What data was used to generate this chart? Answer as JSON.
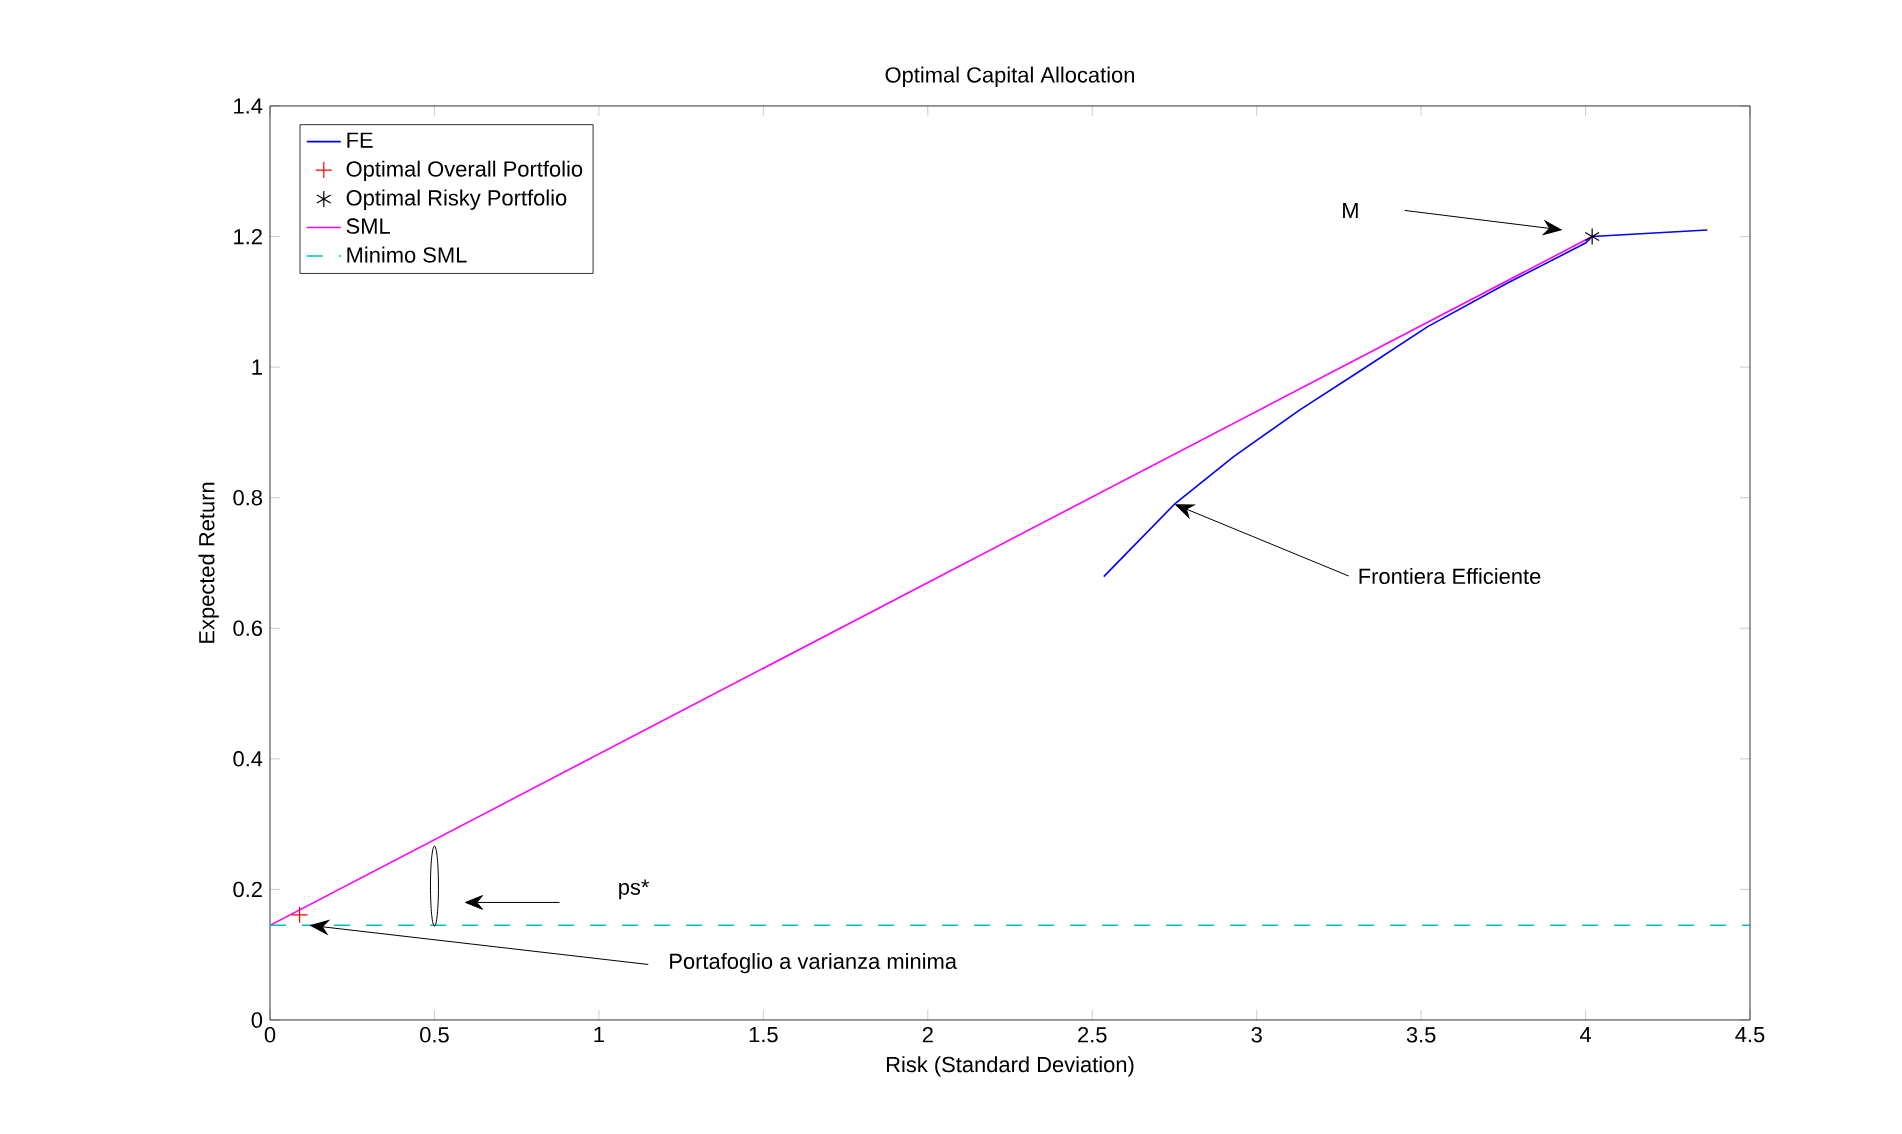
{
  "chart_data": {
    "type": "line",
    "title": "Optimal Capital Allocation",
    "xlabel": "Risk (Standard Deviation)",
    "ylabel": "Expected Return",
    "xlim": [
      0,
      4.5
    ],
    "ylim": [
      0,
      1.4
    ],
    "xticks": [
      0,
      0.5,
      1,
      1.5,
      2,
      2.5,
      3,
      3.5,
      4,
      4.5
    ],
    "yticks": [
      0,
      0.2,
      0.4,
      0.6,
      0.8,
      1,
      1.2,
      1.4
    ],
    "grid": false,
    "legend": "top left",
    "series": [
      {
        "name": "FE",
        "color": "#0000ff",
        "x": [
          2.535,
          2.75,
          2.93,
          3.13,
          3.32,
          3.52,
          3.76,
          4.0,
          4.02,
          4.37
        ],
        "values": [
          0.679,
          0.79,
          0.863,
          0.934,
          0.996,
          1.062,
          1.128,
          1.19,
          1.2,
          1.21
        ]
      },
      {
        "name": "Optimal Overall Portfolio",
        "type": "scatter",
        "marker": "cross",
        "color": "#ff0000",
        "x": [
          0.09
        ],
        "values": [
          0.161
        ]
      },
      {
        "name": "Optimal Risky Portfolio",
        "type": "scatter",
        "color": "#000000",
        "x": [
          4.02
        ],
        "values": [
          1.2
        ]
      },
      {
        "name": "SML",
        "color": "#ff00ff",
        "x": [
          0,
          4.02
        ],
        "values": [
          0.145,
          1.2
        ]
      },
      {
        "name": "Minimo SML",
        "line_style": "dashed",
        "color": "#00bfbf",
        "x": [
          0,
          4.5
        ],
        "values": [
          0.145,
          0.145
        ]
      }
    ],
    "annotations": [
      "M",
      {
        "text": "Frontiera Efficiente",
        "x": 2.75,
        "y": 0.79
      },
      "ps*",
      {
        "text": "Portafoglio a varianza minima",
        "x": 0.12,
        "y": 0.145
      }
    ]
  }
}
